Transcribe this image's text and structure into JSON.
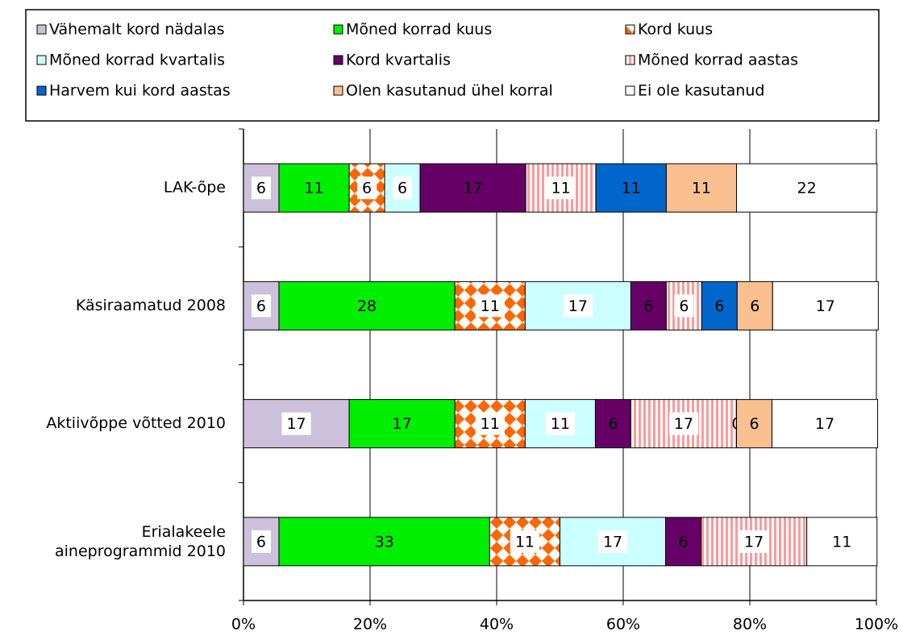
{
  "chart_data": {
    "type": "stacked-bar-horizontal",
    "categories": [
      "LAK-õpe",
      "Käsiraamatud 2008",
      "Aktiivõppe võtted 2010",
      "Erialakeele aineprogrammid 2010"
    ],
    "series": [
      {
        "name": "Vähemalt kord nädalas",
        "color": "#ccc0da",
        "values": [
          5.6,
          5.6,
          16.7,
          5.6
        ],
        "value_labels": [
          "6",
          "6",
          "17",
          "6"
        ]
      },
      {
        "name": "Mõned korrad kuus",
        "color": "#00ee00",
        "values": [
          11.1,
          27.8,
          16.7,
          33.3
        ],
        "value_labels": [
          "11",
          "28",
          "17",
          "33"
        ]
      },
      {
        "name": "Kord kuus",
        "color": "#ff6600",
        "pattern": "checker",
        "values": [
          5.6,
          11.1,
          11.1,
          11.1
        ],
        "value_labels": [
          "6",
          "11",
          "11",
          "11"
        ]
      },
      {
        "name": "Mõned korrad kvartalis",
        "color": "#ccffff",
        "values": [
          5.6,
          16.7,
          11.1,
          16.7
        ],
        "value_labels": [
          "6",
          "17",
          "11",
          "17"
        ]
      },
      {
        "name": "Kord kvartalis",
        "color": "#660066",
        "label_color": "#ffff00",
        "values": [
          16.7,
          5.6,
          5.6,
          5.6
        ],
        "value_labels": [
          "17",
          "6",
          "6",
          "6"
        ]
      },
      {
        "name": "Mõned korrad aastas",
        "color": "#ff9999",
        "pattern": "stripes",
        "values": [
          11.1,
          5.6,
          16.7,
          16.7
        ],
        "value_labels": [
          "11",
          "6",
          "17",
          "17"
        ]
      },
      {
        "name": "Harvem kui kord aastas",
        "color": "#0066cc",
        "values": [
          11.1,
          5.6,
          0,
          0
        ],
        "value_labels": [
          "11",
          "6",
          "0",
          null
        ]
      },
      {
        "name": "Olen kasutanud ühel korral",
        "color": "#fac090",
        "values": [
          11.1,
          5.6,
          5.6,
          0
        ],
        "value_labels": [
          "11",
          "6",
          "6",
          null
        ]
      },
      {
        "name": "Ei ole kasutanud",
        "color": "#ffffff",
        "values": [
          22.2,
          16.7,
          16.7,
          11.1
        ],
        "value_labels": [
          "22",
          "17",
          "17",
          "11"
        ]
      }
    ],
    "xlim": [
      0,
      100
    ],
    "xticks": [
      {
        "value": 0,
        "label": "0%"
      },
      {
        "value": 20,
        "label": "20%"
      },
      {
        "value": 40,
        "label": "40%"
      },
      {
        "value": 60,
        "label": "60%"
      },
      {
        "value": 80,
        "label": "80%"
      },
      {
        "value": 100,
        "label": "100%"
      }
    ],
    "grid": true,
    "legend": "top"
  }
}
